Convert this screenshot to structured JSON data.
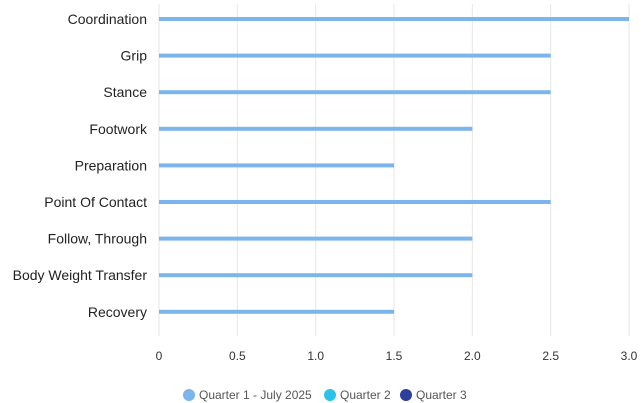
{
  "chart_data": {
    "type": "bar",
    "orientation": "horizontal",
    "categories": [
      "Coordination",
      "Grip",
      "Stance",
      "Footwork",
      "Preparation",
      "Point Of Contact",
      "Follow, Through",
      "Body Weight Transfer",
      "Recovery"
    ],
    "series": [
      {
        "name": "Quarter 1 - July 2025",
        "color": "#7cb5ec",
        "values": [
          3,
          2.5,
          2.5,
          2,
          1.5,
          2.5,
          2,
          2,
          1.5
        ]
      },
      {
        "name": "Quarter 2",
        "color": "#2bc1e8",
        "values": [
          null,
          null,
          null,
          null,
          null,
          null,
          null,
          null,
          null
        ]
      },
      {
        "name": "Quarter 3",
        "color": "#2b3f9b",
        "values": [
          null,
          null,
          null,
          null,
          null,
          null,
          null,
          null,
          null
        ]
      }
    ],
    "xlim": [
      0,
      3
    ],
    "x_ticks": [
      "0",
      "0.5",
      "1.0",
      "1.5",
      "2.0",
      "2.5",
      "3.0"
    ],
    "grid": true,
    "legend_position": "bottom-center"
  }
}
